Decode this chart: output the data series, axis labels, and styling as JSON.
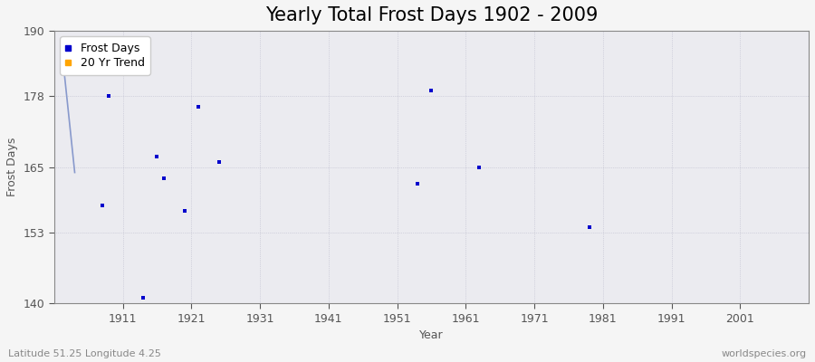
{
  "title": "Yearly Total Frost Days 1902 - 2009",
  "xlabel": "Year",
  "ylabel": "Frost Days",
  "subtitle_left": "Latitude 51.25 Longitude 4.25",
  "subtitle_right": "worldspecies.org",
  "xlim": [
    1901,
    2011
  ],
  "ylim": [
    140,
    190
  ],
  "yticks": [
    140,
    153,
    165,
    178,
    190
  ],
  "xticks": [
    1911,
    1921,
    1931,
    1941,
    1951,
    1961,
    1971,
    1981,
    1991,
    2001
  ],
  "scatter_points": [
    [
      1908,
      158
    ],
    [
      1909,
      178
    ],
    [
      1914,
      141
    ],
    [
      1916,
      167
    ],
    [
      1917,
      163
    ],
    [
      1920,
      157
    ],
    [
      1922,
      176
    ],
    [
      1925,
      166
    ],
    [
      1954,
      162
    ],
    [
      1956,
      179
    ],
    [
      1963,
      165
    ],
    [
      1979,
      154
    ]
  ],
  "trend_line": [
    [
      1902,
      188
    ],
    [
      1904,
      164
    ]
  ],
  "scatter_color": "#0000cc",
  "trend_color": "#8899cc",
  "plot_bg_color": "#ebebf0",
  "outer_bg_color": "#f5f5f5",
  "grid_color": "#bbbbcc",
  "title_fontsize": 15,
  "label_fontsize": 9,
  "tick_fontsize": 9,
  "marker": "s",
  "marker_size": 3
}
